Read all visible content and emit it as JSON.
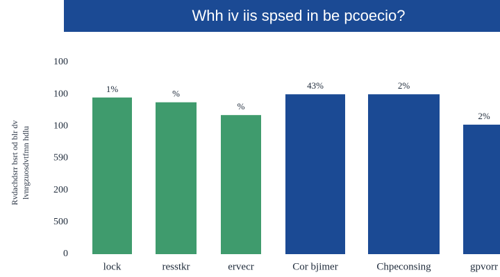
{
  "chart_data": {
    "type": "bar",
    "title": "Whh iv iis spsed in be pcoecio?",
    "ylabel": [
      "Rvdachdsrr bsrt od blr dv",
      "lvnrgzuosdvtfmn hdlu"
    ],
    "categories": [
      "lock",
      "resstkr",
      "ervecr",
      "Cor bjimer",
      "Chpeconsing",
      "gpvorr"
    ],
    "values": [
      4.9,
      4.75,
      4.35,
      5.0,
      5.0,
      4.05
    ],
    "annotations": [
      "1%",
      "%",
      "%",
      "43%",
      "2%",
      "2%"
    ],
    "colors": [
      "#3f9b6d",
      "#3f9b6d",
      "#3f9b6d",
      "#1b4a94",
      "#1b4a94",
      "#1b4a94"
    ],
    "ylim": [
      0,
      6
    ],
    "yticks": [
      {
        "value": 0,
        "label": "0"
      },
      {
        "value": 1,
        "label": "500"
      },
      {
        "value": 2,
        "label": "200"
      },
      {
        "value": 3,
        "label": "590"
      },
      {
        "value": 4,
        "label": "100"
      },
      {
        "value": 5,
        "label": "100"
      },
      {
        "value": 6,
        "label": "100"
      }
    ]
  }
}
